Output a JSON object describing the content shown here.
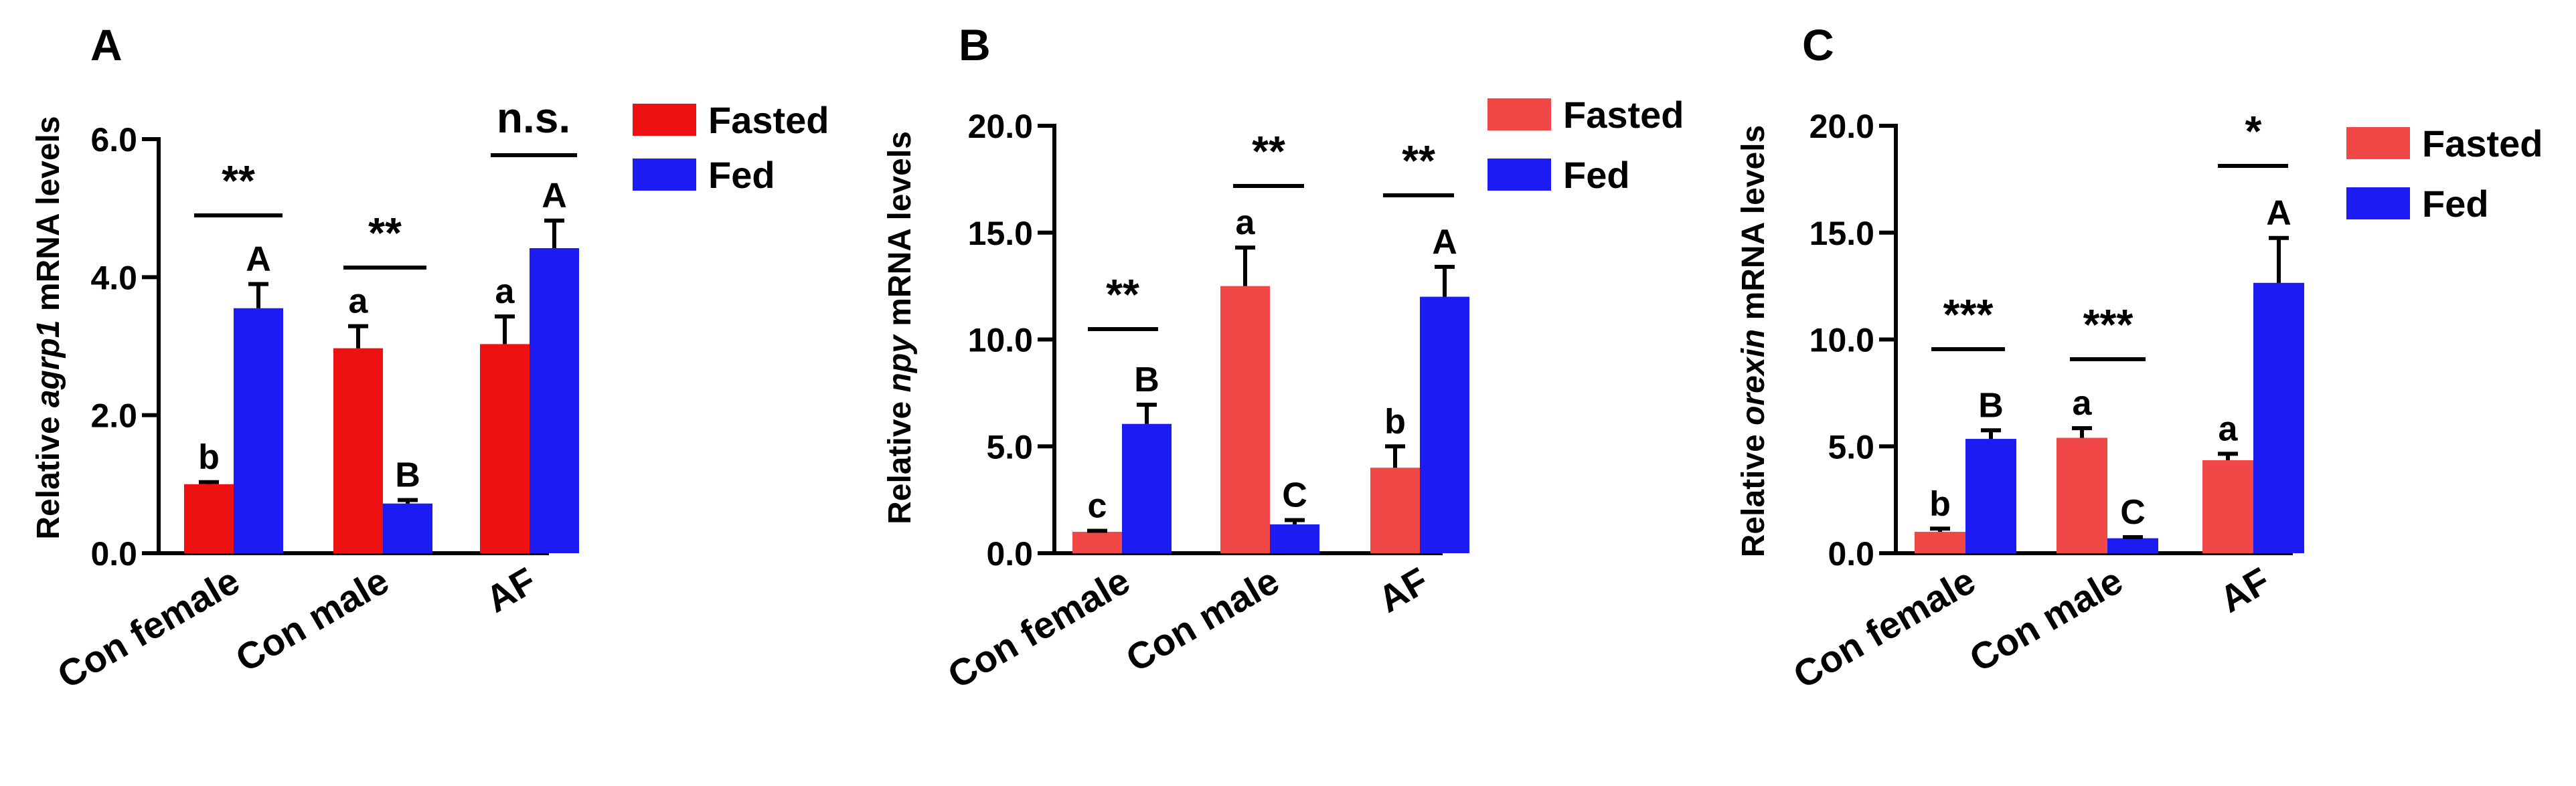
{
  "figure": {
    "panels": [
      "A",
      "B",
      "C"
    ]
  },
  "colors": {
    "A": {
      "Fasted": "#ee1111",
      "Fed": "#1b1bf2"
    },
    "B": {
      "Fasted": "#f24747",
      "Fed": "#1b1bf2"
    },
    "C": {
      "Fasted": "#f24747",
      "Fed": "#1b1bf2"
    }
  },
  "chart_data": [
    {
      "panel": "A",
      "type": "bar",
      "ylabel_prefix": "Relative ",
      "gene": "agrp1",
      "ylabel_suffix": " mRNA levels",
      "ylim": [
        0,
        6
      ],
      "yticks": [
        "0.0",
        "2.0",
        "4.0",
        "6.0"
      ],
      "yticks_values": [
        0,
        2,
        4,
        6
      ],
      "categories": [
        "Con female",
        "Con male",
        "AF"
      ],
      "series": [
        {
          "name": "Fasted",
          "values": [
            1.0,
            2.97,
            3.03
          ],
          "errors": [
            0.03,
            0.32,
            0.4
          ],
          "letters": [
            "b",
            "a",
            "a"
          ]
        },
        {
          "name": "Fed",
          "values": [
            3.55,
            0.72,
            4.42
          ],
          "errors": [
            0.35,
            0.05,
            0.4
          ],
          "letters": [
            "A",
            "B",
            "A"
          ]
        }
      ],
      "significance": [
        "**",
        "**",
        "n.s."
      ]
    },
    {
      "panel": "B",
      "type": "bar",
      "ylabel_prefix": "Relative ",
      "gene": "npy",
      "ylabel_suffix": " mRNA levels",
      "ylim": [
        0,
        20
      ],
      "yticks": [
        "0.0",
        "5.0",
        "10.0",
        "15.0",
        "20.0"
      ],
      "yticks_values": [
        0,
        5,
        10,
        15,
        20
      ],
      "categories": [
        "Con female",
        "Con male",
        "AF"
      ],
      "series": [
        {
          "name": "Fasted",
          "values": [
            1.0,
            12.5,
            4.0
          ],
          "errors": [
            0.05,
            1.8,
            1.0
          ],
          "letters": [
            "c",
            "a",
            "b"
          ]
        },
        {
          "name": "Fed",
          "values": [
            6.05,
            1.35,
            12.0
          ],
          "errors": [
            0.9,
            0.2,
            1.4
          ],
          "letters": [
            "B",
            "C",
            "A"
          ]
        }
      ],
      "significance": [
        "**",
        "**",
        "**"
      ]
    },
    {
      "panel": "C",
      "type": "bar",
      "ylabel_prefix": "Relative ",
      "gene": "orexin",
      "ylabel_suffix": " mRNA levels",
      "ylim": [
        0,
        20
      ],
      "yticks": [
        "0.0",
        "5.0",
        "10.0",
        "15.0",
        "20.0"
      ],
      "yticks_values": [
        0,
        5,
        10,
        15,
        20
      ],
      "categories": [
        "Con female",
        "Con male",
        "AF"
      ],
      "series": [
        {
          "name": "Fasted",
          "values": [
            1.0,
            5.4,
            4.35
          ],
          "errors": [
            0.15,
            0.45,
            0.3
          ],
          "letters": [
            "b",
            "a",
            "a"
          ]
        },
        {
          "name": "Fed",
          "values": [
            5.35,
            0.7,
            12.65
          ],
          "errors": [
            0.4,
            0.05,
            2.1
          ],
          "letters": [
            "B",
            "C",
            "A"
          ]
        }
      ],
      "significance": [
        "***",
        "***",
        "*"
      ]
    }
  ]
}
